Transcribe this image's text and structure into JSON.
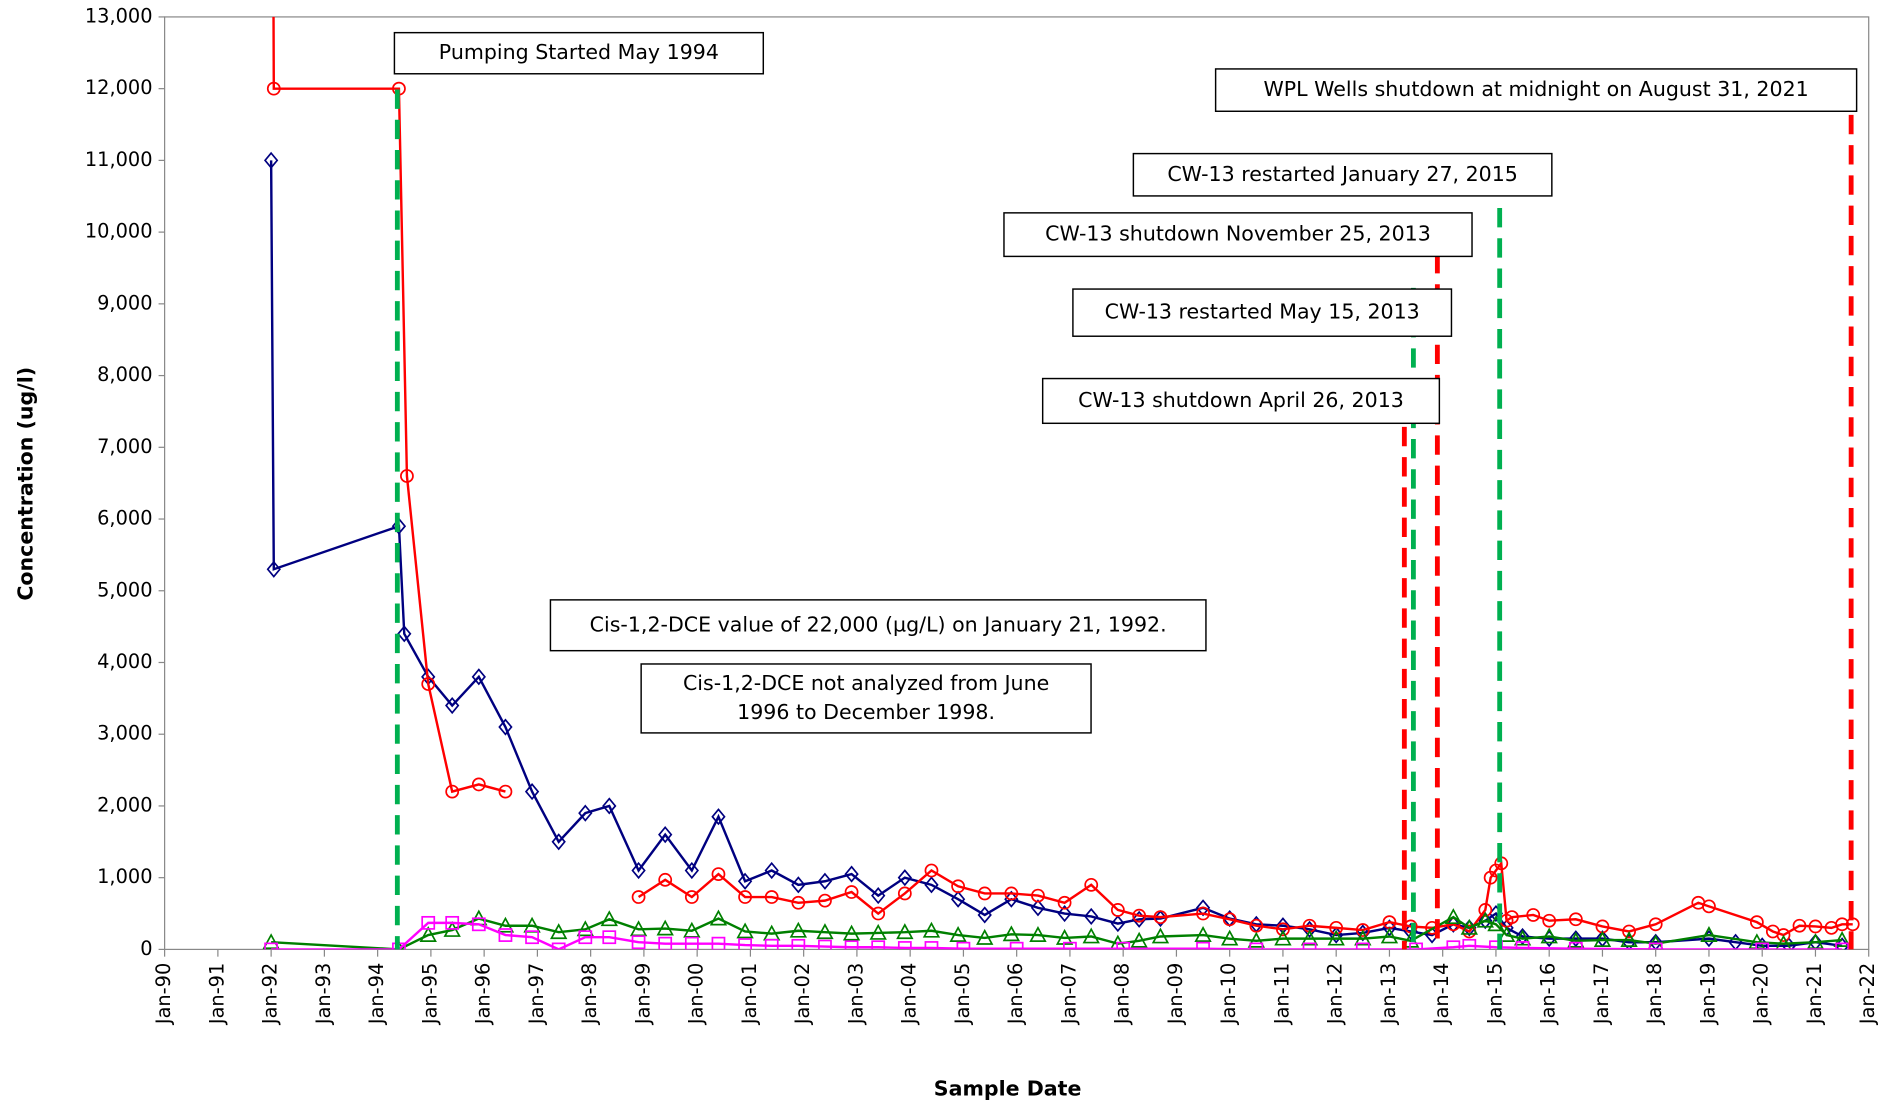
{
  "chart_data": {
    "type": "line",
    "y_label": "Concentration (ug/l)",
    "x_label": "Sample Date",
    "xlim": [
      1990,
      2022
    ],
    "ylim": [
      0,
      13000
    ],
    "xticks": [
      {
        "value": 1990,
        "label": "Jan-90"
      },
      {
        "value": 1991,
        "label": "Jan-91"
      },
      {
        "value": 1992,
        "label": "Jan-92"
      },
      {
        "value": 1993,
        "label": "Jan-93"
      },
      {
        "value": 1994,
        "label": "Jan-94"
      },
      {
        "value": 1995,
        "label": "Jan-95"
      },
      {
        "value": 1996,
        "label": "Jan-96"
      },
      {
        "value": 1997,
        "label": "Jan-97"
      },
      {
        "value": 1998,
        "label": "Jan-98"
      },
      {
        "value": 1999,
        "label": "Jan-99"
      },
      {
        "value": 2000,
        "label": "Jan-00"
      },
      {
        "value": 2001,
        "label": "Jan-01"
      },
      {
        "value": 2002,
        "label": "Jan-02"
      },
      {
        "value": 2003,
        "label": "Jan-03"
      },
      {
        "value": 2004,
        "label": "Jan-04"
      },
      {
        "value": 2005,
        "label": "Jan-05"
      },
      {
        "value": 2006,
        "label": "Jan-06"
      },
      {
        "value": 2007,
        "label": "Jan-07"
      },
      {
        "value": 2008,
        "label": "Jan-08"
      },
      {
        "value": 2009,
        "label": "Jan-09"
      },
      {
        "value": 2010,
        "label": "Jan-10"
      },
      {
        "value": 2011,
        "label": "Jan-11"
      },
      {
        "value": 2012,
        "label": "Jan-12"
      },
      {
        "value": 2013,
        "label": "Jan-13"
      },
      {
        "value": 2014,
        "label": "Jan-14"
      },
      {
        "value": 2015,
        "label": "Jan-15"
      },
      {
        "value": 2016,
        "label": "Jan-16"
      },
      {
        "value": 2017,
        "label": "Jan-17"
      },
      {
        "value": 2018,
        "label": "Jan-18"
      },
      {
        "value": 2019,
        "label": "Jan-19"
      },
      {
        "value": 2020,
        "label": "Jan-20"
      },
      {
        "value": 2021,
        "label": "Jan-21"
      },
      {
        "value": 2022,
        "label": "Jan-22"
      }
    ],
    "yticks": [
      0,
      {
        "value": 1000,
        "label": "1,000"
      },
      {
        "value": 2000,
        "label": "2,000"
      },
      {
        "value": 3000,
        "label": "3,000"
      },
      {
        "value": 4000,
        "label": "4,000"
      },
      {
        "value": 5000,
        "label": "5,000"
      },
      {
        "value": 6000,
        "label": "6,000"
      },
      {
        "value": 7000,
        "label": "7,000"
      },
      {
        "value": 8000,
        "label": "8,000"
      },
      {
        "value": 9000,
        "label": "9,000"
      },
      {
        "value": 10000,
        "label": "10,000"
      },
      {
        "value": 11000,
        "label": "11,000"
      },
      {
        "value": 12000,
        "label": "12,000"
      },
      {
        "value": 13000,
        "label": "13,000"
      }
    ],
    "series": [
      {
        "color": "#000080",
        "marker": "diamond",
        "x": [
          1992.0,
          1992.05,
          1994.4,
          1994.5,
          1994.95,
          1995.4,
          1995.9,
          1996.4,
          1996.9,
          1997.4,
          1997.9,
          1998.35,
          1998.9,
          1999.4,
          1999.9,
          2000.4,
          2000.9,
          2001.4,
          2001.9,
          2002.4,
          2002.9,
          2003.4,
          2003.9,
          2004.4,
          2004.9,
          2005.4,
          2005.9,
          2006.4,
          2006.9,
          2007.4,
          2007.9,
          2008.3,
          2008.7,
          2009.5,
          2010.0,
          2010.5,
          2011.0,
          2011.5,
          2012.0,
          2012.5,
          2013.0,
          2013.4,
          2013.8,
          2014.2,
          2014.5,
          2014.8,
          2015.0,
          2015.2,
          2015.5,
          2016.0,
          2016.5,
          2017.0,
          2017.5,
          2018.0,
          2019.0,
          2019.5,
          2020.0,
          2020.5,
          2021.0,
          2021.5
        ],
        "values": [
          11000,
          5300,
          5900,
          4400,
          3800,
          3400,
          3800,
          3100,
          2200,
          1500,
          1900,
          2000,
          1100,
          1600,
          1100,
          1850,
          950,
          1100,
          900,
          950,
          1050,
          750,
          1000,
          900,
          700,
          480,
          700,
          580,
          500,
          460,
          360,
          420,
          430,
          580,
          430,
          350,
          330,
          280,
          200,
          230,
          300,
          250,
          200,
          350,
          300,
          400,
          500,
          300,
          180,
          150,
          150,
          150,
          100,
          100,
          150,
          100,
          50,
          50,
          100,
          50
        ]
      },
      {
        "color": "#ff0000",
        "marker": "circle",
        "x": [
          1992.0,
          1992.05,
          1994.4,
          1994.55,
          1994.95,
          1995.4,
          1995.9,
          1996.4,
          1997.5,
          1998.9,
          1999.4,
          1999.9,
          2000.4,
          2000.9,
          2001.4,
          2001.9,
          2002.4,
          2002.9,
          2003.4,
          2003.9,
          2004.4,
          2004.9,
          2005.4,
          2005.9,
          2006.4,
          2006.9,
          2007.4,
          2007.9,
          2008.3,
          2008.7,
          2009.5,
          2010.0,
          2010.5,
          2011.0,
          2011.5,
          2012.0,
          2012.5,
          2013.0,
          2013.4,
          2013.8,
          2014.2,
          2014.5,
          2014.8,
          2014.9,
          2015.0,
          2015.1,
          2015.2,
          2015.3,
          2015.7,
          2016.0,
          2016.5,
          2017.0,
          2017.5,
          2018.0,
          2018.8,
          2019.0,
          2019.9,
          2020.2,
          2020.4,
          2020.7,
          2021.0,
          2021.3,
          2021.5,
          2021.7
        ],
        "values": [
          22000,
          12000,
          12000,
          6600,
          3700,
          2200,
          2300,
          2200,
          null,
          730,
          970,
          730,
          1050,
          730,
          730,
          650,
          680,
          800,
          500,
          780,
          1100,
          880,
          780,
          780,
          750,
          650,
          900,
          550,
          470,
          450,
          500,
          420,
          330,
          280,
          330,
          300,
          270,
          380,
          320,
          300,
          350,
          250,
          550,
          1000,
          1100,
          1200,
          400,
          450,
          480,
          400,
          420,
          320,
          250,
          350,
          650,
          600,
          380,
          250,
          200,
          330,
          320,
          300,
          350,
          350
        ]
      },
      {
        "color": "#008000",
        "marker": "triangle",
        "x": [
          1992.0,
          1994.4,
          1994.95,
          1995.4,
          1995.9,
          1996.4,
          1996.9,
          1997.4,
          1997.9,
          1998.35,
          1998.9,
          1999.4,
          1999.9,
          2000.4,
          2000.9,
          2001.4,
          2001.9,
          2002.4,
          2002.9,
          2003.4,
          2003.9,
          2004.4,
          2004.9,
          2005.4,
          2005.9,
          2006.4,
          2006.9,
          2007.4,
          2007.9,
          2008.3,
          2008.7,
          2009.5,
          2010.0,
          2010.5,
          2011.0,
          2011.5,
          2012.0,
          2012.5,
          2013.0,
          2013.4,
          2014.2,
          2014.5,
          2014.8,
          2015.0,
          2015.2,
          2015.5,
          2016.0,
          2016.5,
          2017.0,
          2017.5,
          2018.0,
          2019.0,
          2019.9,
          2020.4,
          2021.0,
          2021.5
        ],
        "values": [
          100,
          0,
          200,
          270,
          430,
          330,
          330,
          240,
          280,
          420,
          280,
          290,
          260,
          430,
          250,
          220,
          260,
          240,
          220,
          230,
          240,
          260,
          200,
          160,
          210,
          200,
          160,
          180,
          80,
          120,
          180,
          200,
          150,
          120,
          150,
          150,
          150,
          150,
          180,
          120,
          450,
          300,
          400,
          350,
          200,
          150,
          180,
          120,
          130,
          130,
          80,
          200,
          100,
          80,
          100,
          130
        ]
      },
      {
        "color": "#ff00ff",
        "marker": "square",
        "x": [
          1992.0,
          1994.4,
          1994.95,
          1995.4,
          1995.9,
          1996.4,
          1996.9,
          1997.4,
          1997.9,
          1998.35,
          1998.9,
          1999.4,
          1999.9,
          2000.4,
          2000.9,
          2001.4,
          2001.9,
          2002.4,
          2002.9,
          2003.4,
          2003.9,
          2004.4,
          2005.0,
          2006.0,
          2007.0,
          2008.0,
          2009.5,
          2010.5,
          2011.5,
          2012.5,
          2013.5,
          2014.2,
          2014.5,
          2015.0,
          2015.5,
          2016.5,
          2018.0,
          2020.0,
          2021.5
        ],
        "values": [
          0,
          0,
          370,
          370,
          350,
          200,
          170,
          0,
          170,
          170,
          100,
          80,
          80,
          80,
          60,
          50,
          50,
          40,
          30,
          30,
          20,
          20,
          10,
          10,
          10,
          10,
          10,
          0,
          0,
          0,
          0,
          30,
          50,
          30,
          20,
          10,
          0,
          0,
          0
        ]
      }
    ],
    "annotations": [
      {
        "text": [
          "Pumping Started  May 1994"
        ],
        "x": 1994.37,
        "color": "#00b050"
      },
      {
        "text": [
          "WPL Wells shutdown at midnight on August 31, 2021"
        ],
        "x": 2021.67,
        "color": "#ff0000"
      },
      {
        "text": [
          "CW-13 restarted January 27, 2015"
        ],
        "x": 2015.07,
        "color": "#00b050"
      },
      {
        "text": [
          "CW-13 shutdown November 25, 2013"
        ],
        "x": 2013.9,
        "color": "#ff0000"
      },
      {
        "text": [
          "CW-13 restarted May 15, 2013"
        ],
        "x": 2013.45,
        "color": "#00b050"
      },
      {
        "text": [
          "CW-13 shutdown April 26, 2013"
        ],
        "x": 2013.28,
        "color": "#ff0000"
      },
      {
        "text": [
          "Cis-1,2-DCE value of 22,000 (µg/L) on January 21, 1992."
        ]
      },
      {
        "text": [
          "Cis-1,2-DCE not analyzed from June",
          "1996 to December 1998."
        ]
      }
    ]
  }
}
